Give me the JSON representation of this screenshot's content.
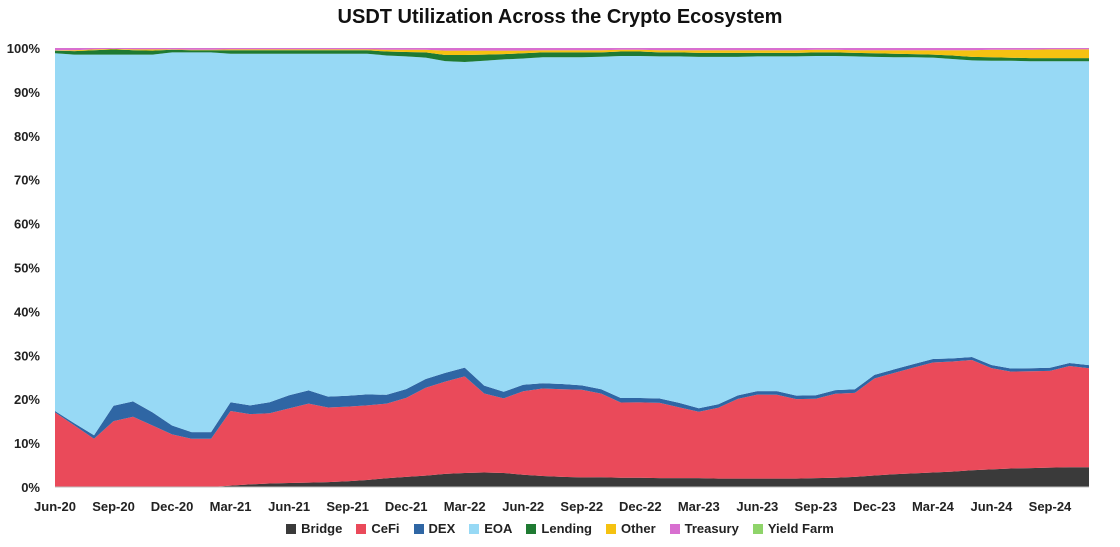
{
  "chart_data": {
    "type": "area",
    "stacked": "percent",
    "title": "USDT Utilization Across the Crypto Ecosystem",
    "xlabel": "",
    "ylabel": "",
    "ylim": [
      0,
      100
    ],
    "yticks": [
      "0%",
      "10%",
      "20%",
      "30%",
      "40%",
      "50%",
      "60%",
      "70%",
      "80%",
      "90%",
      "100%"
    ],
    "xticks": [
      "Jun-20",
      "Sep-20",
      "Dec-20",
      "Mar-21",
      "Jun-21",
      "Sep-21",
      "Dec-21",
      "Mar-22",
      "Jun-22",
      "Sep-22",
      "Dec-22",
      "Mar-23",
      "Jun-23",
      "Sep-23",
      "Dec-23",
      "Mar-24",
      "Jun-24",
      "Sep-24"
    ],
    "x": [
      "2020-06",
      "2020-07",
      "2020-08",
      "2020-09",
      "2020-10",
      "2020-11",
      "2020-12",
      "2021-01",
      "2021-02",
      "2021-03",
      "2021-04",
      "2021-05",
      "2021-06",
      "2021-07",
      "2021-08",
      "2021-09",
      "2021-10",
      "2021-11",
      "2021-12",
      "2022-01",
      "2022-02",
      "2022-03",
      "2022-04",
      "2022-05",
      "2022-06",
      "2022-07",
      "2022-08",
      "2022-09",
      "2022-10",
      "2022-11",
      "2022-12",
      "2023-01",
      "2023-02",
      "2023-03",
      "2023-04",
      "2023-05",
      "2023-06",
      "2023-07",
      "2023-08",
      "2023-09",
      "2023-10",
      "2023-11",
      "2023-12",
      "2024-01",
      "2024-02",
      "2024-03",
      "2024-04",
      "2024-05",
      "2024-06",
      "2024-07",
      "2024-08",
      "2024-09",
      "2024-10",
      "2024-11"
    ],
    "series": [
      {
        "name": "Bridge",
        "color": "#3a3a3a",
        "values": [
          0,
          0,
          0,
          0,
          0,
          0,
          0,
          0,
          0,
          0.3,
          0.6,
          0.8,
          0.9,
          1.0,
          1.1,
          1.3,
          1.6,
          2.0,
          2.3,
          2.6,
          3.0,
          3.2,
          3.3,
          3.2,
          2.8,
          2.5,
          2.3,
          2.2,
          2.2,
          2.1,
          2.1,
          2.0,
          2.0,
          2.0,
          1.9,
          1.9,
          1.9,
          1.9,
          1.9,
          2.0,
          2.1,
          2.3,
          2.6,
          2.9,
          3.1,
          3.3,
          3.5,
          3.8,
          4.0,
          4.2,
          4.3,
          4.4,
          4.5,
          4.5
        ]
      },
      {
        "name": "CeFi",
        "color": "#ea4a5a",
        "values": [
          17,
          14,
          11,
          15,
          16,
          14,
          12,
          11,
          11,
          17,
          16,
          16,
          17,
          18,
          17,
          17,
          17,
          17,
          18,
          20,
          21,
          22,
          18,
          17,
          19,
          20,
          20,
          20,
          19,
          17,
          17,
          17,
          16,
          15,
          16,
          18,
          19,
          19,
          18,
          18,
          19,
          19,
          22,
          23,
          24,
          25,
          25,
          25,
          23,
          22,
          22,
          22,
          23,
          22.5
        ]
      },
      {
        "name": "DEX",
        "color": "#2f66a4",
        "values": [
          0.3,
          0.5,
          0.8,
          3.5,
          3.5,
          3.0,
          2.0,
          1.5,
          1.5,
          2.0,
          2.0,
          2.5,
          3.0,
          3.0,
          2.5,
          2.5,
          2.5,
          2.0,
          2.0,
          2.0,
          2.0,
          2.0,
          1.8,
          1.5,
          1.5,
          1.2,
          1.2,
          1.0,
          1.0,
          1.0,
          1.0,
          1.0,
          1.0,
          0.8,
          0.8,
          0.8,
          0.8,
          0.8,
          0.8,
          0.8,
          0.8,
          0.8,
          0.8,
          0.8,
          0.8,
          0.8,
          0.7,
          0.7,
          0.7,
          0.7,
          0.7,
          0.7,
          0.7,
          0.7
        ]
      },
      {
        "name": "EOA",
        "color": "#97d9f5",
        "values": [
          81.5,
          84.0,
          86.7,
          80.0,
          79.0,
          81.5,
          85.0,
          86.5,
          86.5,
          79.4,
          80.1,
          79.4,
          77.8,
          76.7,
          78.1,
          77.9,
          77.6,
          77.3,
          75.8,
          73.2,
          71.0,
          69.6,
          74.0,
          75.7,
          74.3,
          74.5,
          74.6,
          74.9,
          75.5,
          77.3,
          77.2,
          77.3,
          78.3,
          79.4,
          78.5,
          76.5,
          75.7,
          75.8,
          76.8,
          76.9,
          75.6,
          75.3,
          72.1,
          70.9,
          69.7,
          68.5,
          68.0,
          67.3,
          69.1,
          69.9,
          69.8,
          69.7,
          68.6,
          69.1
        ]
      },
      {
        "name": "Lending",
        "color": "#1f7a32",
        "values": [
          0.6,
          0.8,
          1.0,
          1.2,
          1.0,
          0.9,
          0.6,
          0.5,
          0.5,
          0.8,
          0.8,
          0.8,
          0.8,
          0.8,
          0.8,
          0.8,
          0.8,
          0.9,
          1.0,
          1.2,
          1.4,
          1.6,
          1.4,
          1.2,
          1.2,
          1.1,
          1.1,
          1.1,
          1.0,
          1.0,
          1.0,
          0.9,
          0.9,
          0.9,
          0.9,
          0.9,
          0.8,
          0.8,
          0.8,
          0.8,
          0.8,
          0.8,
          0.8,
          0.8,
          0.7,
          0.7,
          0.8,
          0.8,
          0.8,
          0.7,
          0.7,
          0.7,
          0.7,
          0.7
        ]
      },
      {
        "name": "Other",
        "color": "#f5c211",
        "values": [
          0.1,
          0.2,
          0.2,
          0.1,
          0.2,
          0.3,
          0.1,
          0.1,
          0.1,
          0.2,
          0.2,
          0.2,
          0.2,
          0.2,
          0.2,
          0.2,
          0.2,
          0.4,
          0.5,
          0.6,
          1.0,
          1.0,
          0.9,
          0.8,
          0.6,
          0.5,
          0.5,
          0.5,
          0.5,
          0.4,
          0.4,
          0.5,
          0.5,
          0.6,
          0.6,
          0.6,
          0.6,
          0.6,
          0.6,
          0.6,
          0.6,
          0.6,
          0.7,
          0.8,
          0.9,
          1.0,
          1.2,
          1.5,
          1.7,
          1.8,
          1.9,
          2.0,
          2.0,
          2.0
        ]
      },
      {
        "name": "Treasury",
        "color": "#d86fd0",
        "values": [
          0.5,
          0.5,
          0.3,
          0.2,
          0.3,
          0.3,
          0.3,
          0.4,
          0.4,
          0.3,
          0.3,
          0.3,
          0.3,
          0.3,
          0.3,
          0.3,
          0.3,
          0.4,
          0.4,
          0.4,
          0.6,
          0.6,
          0.6,
          0.6,
          0.6,
          0.5,
          0.5,
          0.5,
          0.5,
          0.4,
          0.4,
          0.5,
          0.5,
          0.5,
          0.5,
          0.5,
          0.5,
          0.5,
          0.5,
          0.4,
          0.4,
          0.5,
          0.5,
          0.5,
          0.5,
          0.5,
          0.5,
          0.5,
          0.4,
          0.4,
          0.4,
          0.3,
          0.3,
          0.3
        ]
      },
      {
        "name": "Yield Farm",
        "color": "#8fd46a",
        "values": [
          0,
          0,
          0,
          0,
          0,
          0,
          0,
          0,
          0,
          0,
          0,
          0,
          0,
          0,
          0,
          0,
          0,
          0,
          0,
          0,
          0,
          0,
          0,
          0,
          0,
          0,
          0,
          0,
          0,
          0,
          0,
          0,
          0,
          0,
          0,
          0,
          0,
          0,
          0,
          0,
          0,
          0,
          0,
          0,
          0,
          0,
          0,
          0,
          0,
          0,
          0,
          0,
          0,
          0
        ]
      }
    ],
    "legend_position": "bottom",
    "grid": false
  }
}
